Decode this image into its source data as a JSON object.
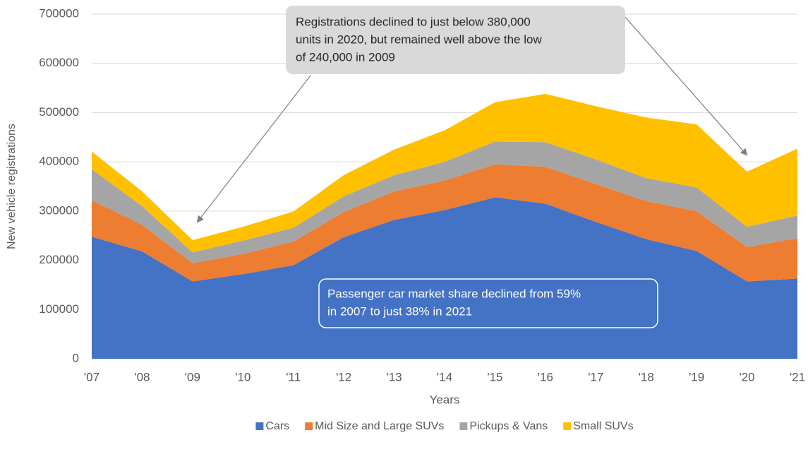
{
  "chart_data": {
    "type": "stacked_area",
    "x_label": "Years",
    "y_label": "New vehicle registrations",
    "categories": [
      "'07",
      "'08",
      "'09",
      "'10",
      "'11",
      "'12",
      "'13",
      "'14",
      "'15",
      "'16",
      "'17",
      "'18",
      "'19",
      "'20",
      "'21"
    ],
    "series": [
      {
        "name": "Cars",
        "color": "#4472c4",
        "values": [
          248000,
          218000,
          157000,
          172000,
          190000,
          247000,
          282000,
          302000,
          328000,
          315000,
          278000,
          243000,
          219000,
          157000,
          163000
        ]
      },
      {
        "name": "Mid Size and Large SUVs",
        "color": "#ed7d31",
        "values": [
          74000,
          54000,
          37000,
          41000,
          48000,
          51000,
          58000,
          60000,
          67000,
          75000,
          77000,
          77000,
          81000,
          70000,
          82000
        ]
      },
      {
        "name": "Pickups & Vans",
        "color": "#a5a5a5",
        "values": [
          63000,
          38000,
          22000,
          27000,
          28000,
          32000,
          33000,
          38000,
          46000,
          50000,
          50000,
          47000,
          48000,
          41000,
          46000
        ]
      },
      {
        "name": "Small SUVs",
        "color": "#ffc000",
        "values": [
          36000,
          30000,
          25000,
          28000,
          33000,
          43000,
          52000,
          64000,
          80000,
          98000,
          108000,
          123000,
          128000,
          112000,
          136000
        ]
      }
    ],
    "ylim": [
      0,
      700000
    ],
    "yticks": [
      0,
      100000,
      200000,
      300000,
      400000,
      500000,
      600000,
      700000
    ],
    "grid": true,
    "legend": "bottom",
    "annotations": [
      {
        "lines": [
          "Registrations declined to just below 380,000",
          "units in 2020, but remained well above the low",
          "of 240,000 in 2009"
        ]
      },
      {
        "lines": [
          "Passenger car market share declined from 59%",
          "in 2007 to just 38% in 2021"
        ]
      }
    ]
  }
}
